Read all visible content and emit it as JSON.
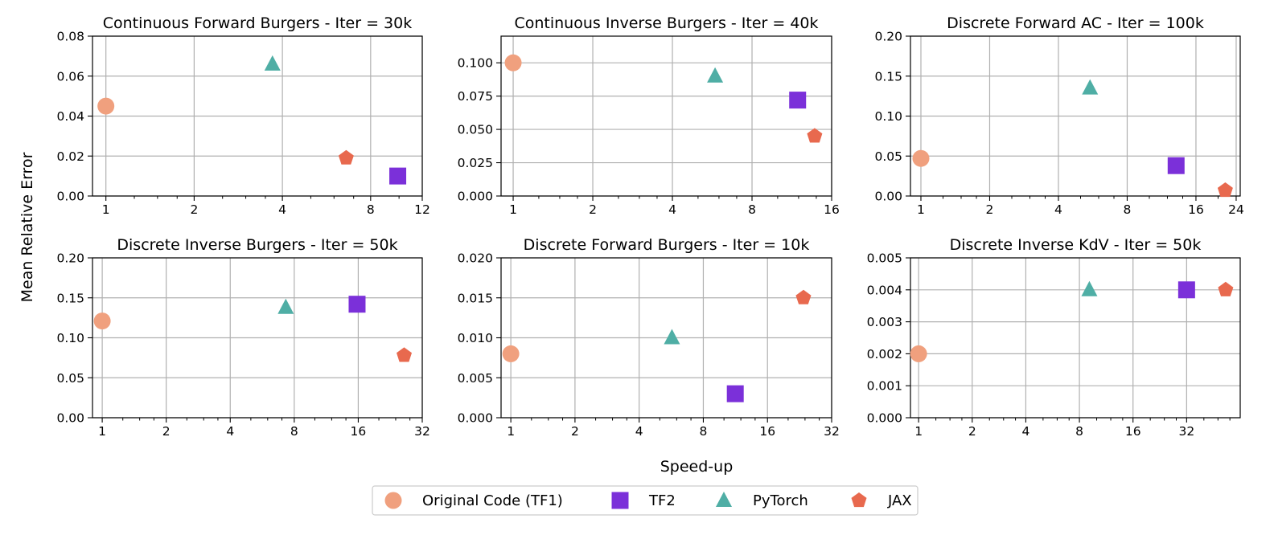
{
  "figure": {
    "ylabel": "Mean Relative Error",
    "xlabel": "Speed-up"
  },
  "legend": {
    "placement": "bottom-center",
    "entries": [
      {
        "name": "Original Code (TF1)",
        "marker": "circle",
        "color": "#F0A07E"
      },
      {
        "name": "TF2",
        "marker": "square",
        "color": "#7B30D9"
      },
      {
        "name": "PyTorch",
        "marker": "triangle",
        "color": "#4FAEA5"
      },
      {
        "name": "JAX",
        "marker": "pentagon",
        "color": "#E8694E"
      }
    ]
  },
  "chart_data": [
    {
      "type": "scatter",
      "title": "Continuous Forward Burgers - Iter = 30k",
      "xscale": "log2",
      "xlim": [
        0.9,
        12
      ],
      "ylim": [
        0,
        0.08
      ],
      "xticks": [
        1,
        2,
        4,
        8,
        12
      ],
      "xticklabels": [
        "1",
        "2",
        "4",
        "8",
        "12"
      ],
      "yticks": [
        0,
        0.02,
        0.04,
        0.06,
        0.08
      ],
      "yticklabels": [
        "0.00",
        "0.02",
        "0.04",
        "0.06",
        "0.08"
      ],
      "grid": true,
      "series": [
        {
          "name": "Original Code (TF1)",
          "x": 1,
          "y": 0.045
        },
        {
          "name": "TF2",
          "x": 9.9,
          "y": 0.01
        },
        {
          "name": "PyTorch",
          "x": 3.7,
          "y": 0.066
        },
        {
          "name": "JAX",
          "x": 6.6,
          "y": 0.019
        }
      ]
    },
    {
      "type": "scatter",
      "title": "Continuous Inverse Burgers - Iter = 40k",
      "xscale": "log2",
      "xlim": [
        0.9,
        16
      ],
      "ylim": [
        0,
        0.12
      ],
      "xticks": [
        1,
        2,
        4,
        8,
        16
      ],
      "xticklabels": [
        "1",
        "2",
        "4",
        "8",
        "16"
      ],
      "yticks": [
        0,
        0.025,
        0.05,
        0.075,
        0.1
      ],
      "yticklabels": [
        "0.000",
        "0.025",
        "0.050",
        "0.075",
        "0.100"
      ],
      "grid": true,
      "series": [
        {
          "name": "Original Code (TF1)",
          "x": 1,
          "y": 0.1
        },
        {
          "name": "TF2",
          "x": 11.9,
          "y": 0.072
        },
        {
          "name": "PyTorch",
          "x": 5.8,
          "y": 0.09
        },
        {
          "name": "JAX",
          "x": 13.8,
          "y": 0.045
        }
      ]
    },
    {
      "type": "scatter",
      "title": "Discrete Forward AC - Iter = 100k",
      "xscale": "log2",
      "xlim": [
        0.9,
        25
      ],
      "ylim": [
        0,
        0.2
      ],
      "xticks": [
        1,
        2,
        4,
        8,
        16,
        24
      ],
      "xticklabels": [
        "1",
        "2",
        "4",
        "8",
        "16",
        "24"
      ],
      "yticks": [
        0,
        0.05,
        0.1,
        0.15,
        0.2
      ],
      "yticklabels": [
        "0.00",
        "0.05",
        "0.10",
        "0.15",
        "0.20"
      ],
      "grid": true,
      "series": [
        {
          "name": "Original Code (TF1)",
          "x": 1,
          "y": 0.047
        },
        {
          "name": "TF2",
          "x": 13.1,
          "y": 0.038
        },
        {
          "name": "PyTorch",
          "x": 5.5,
          "y": 0.135
        },
        {
          "name": "JAX",
          "x": 21.5,
          "y": 0.007
        }
      ]
    },
    {
      "type": "scatter",
      "title": "Discrete Inverse Burgers - Iter = 50k",
      "xscale": "log2",
      "xlim": [
        0.9,
        32
      ],
      "ylim": [
        0,
        0.2
      ],
      "xticks": [
        1,
        2,
        4,
        8,
        16,
        32
      ],
      "xticklabels": [
        "1",
        "2",
        "4",
        "8",
        "16",
        "32"
      ],
      "yticks": [
        0,
        0.05,
        0.1,
        0.15,
        0.2
      ],
      "yticklabels": [
        "0.00",
        "0.05",
        "0.10",
        "0.15",
        "0.20"
      ],
      "grid": true,
      "series": [
        {
          "name": "Original Code (TF1)",
          "x": 1,
          "y": 0.121
        },
        {
          "name": "TF2",
          "x": 15.8,
          "y": 0.142
        },
        {
          "name": "PyTorch",
          "x": 7.3,
          "y": 0.138
        },
        {
          "name": "JAX",
          "x": 26.3,
          "y": 0.078
        }
      ]
    },
    {
      "type": "scatter",
      "title": "Discrete Forward Burgers - Iter = 10k",
      "xscale": "log2",
      "xlim": [
        0.9,
        32
      ],
      "ylim": [
        0,
        0.02
      ],
      "xticks": [
        1,
        2,
        4,
        8,
        16,
        32
      ],
      "xticklabels": [
        "1",
        "2",
        "4",
        "8",
        "16",
        "32"
      ],
      "yticks": [
        0,
        0.005,
        0.01,
        0.015,
        0.02
      ],
      "yticklabels": [
        "0.000",
        "0.005",
        "0.010",
        "0.015",
        "0.020"
      ],
      "grid": true,
      "series": [
        {
          "name": "Original Code (TF1)",
          "x": 1,
          "y": 0.008
        },
        {
          "name": "TF2",
          "x": 11.3,
          "y": 0.003
        },
        {
          "name": "PyTorch",
          "x": 5.7,
          "y": 0.01
        },
        {
          "name": "JAX",
          "x": 23.6,
          "y": 0.015
        }
      ]
    },
    {
      "type": "scatter",
      "title": "Discrete Inverse KdV - Iter = 50k",
      "xscale": "log2",
      "xlim": [
        0.9,
        64
      ],
      "ylim": [
        0,
        0.005
      ],
      "xticks": [
        1,
        2,
        4,
        8,
        16,
        32
      ],
      "xticklabels": [
        "1",
        "2",
        "4",
        "8",
        "16",
        "32"
      ],
      "yticks": [
        0,
        0.001,
        0.002,
        0.003,
        0.004,
        0.005
      ],
      "yticklabels": [
        "0.000",
        "0.001",
        "0.002",
        "0.003",
        "0.004",
        "0.005"
      ],
      "grid": true,
      "series": [
        {
          "name": "Original Code (TF1)",
          "x": 1,
          "y": 0.002
        },
        {
          "name": "TF2",
          "x": 32,
          "y": 0.004
        },
        {
          "name": "PyTorch",
          "x": 9.1,
          "y": 0.004
        },
        {
          "name": "JAX",
          "x": 53,
          "y": 0.004
        }
      ]
    }
  ]
}
